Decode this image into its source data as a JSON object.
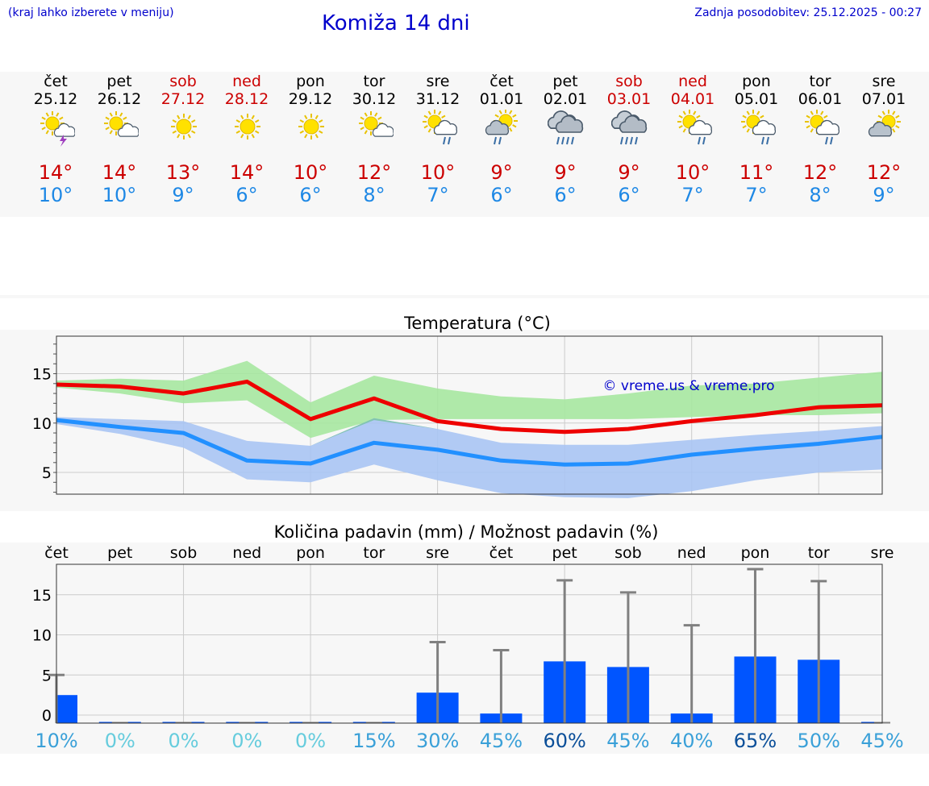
{
  "header": {
    "hint": "(kraj lahko izberete v meniju)",
    "title": "Komiža 14 dni",
    "updated": "Zadnja posodobitev: 25.12.2025 - 00:27"
  },
  "days": [
    {
      "name": "čet",
      "date": "25.12",
      "max": "14°",
      "min": "10°",
      "icon": "sun-cloud-lightning-icon",
      "weekend": false
    },
    {
      "name": "pet",
      "date": "26.12",
      "max": "14°",
      "min": "10°",
      "icon": "sun-cloud-icon",
      "weekend": false
    },
    {
      "name": "sob",
      "date": "27.12",
      "max": "13°",
      "min": "9°",
      "icon": "sun-icon",
      "weekend": true
    },
    {
      "name": "ned",
      "date": "28.12",
      "max": "14°",
      "min": "6°",
      "icon": "sun-icon",
      "weekend": true
    },
    {
      "name": "pon",
      "date": "29.12",
      "max": "10°",
      "min": "6°",
      "icon": "sun-icon",
      "weekend": false
    },
    {
      "name": "tor",
      "date": "30.12",
      "max": "12°",
      "min": "8°",
      "icon": "sun-cloud-icon",
      "weekend": false
    },
    {
      "name": "sre",
      "date": "31.12",
      "max": "10°",
      "min": "7°",
      "icon": "sun-cloud-rain-icon",
      "weekend": false
    },
    {
      "name": "čet",
      "date": "01.01",
      "max": "9°",
      "min": "6°",
      "icon": "sun-dark-cloud-rain-icon",
      "weekend": false
    },
    {
      "name": "pet",
      "date": "02.01",
      "max": "9°",
      "min": "6°",
      "icon": "heavy-rain-cloud-icon",
      "weekend": false
    },
    {
      "name": "sob",
      "date": "03.01",
      "max": "9°",
      "min": "6°",
      "icon": "heavy-rain-cloud-icon",
      "weekend": true
    },
    {
      "name": "ned",
      "date": "04.01",
      "max": "10°",
      "min": "7°",
      "icon": "sun-cloud-rain-icon",
      "weekend": true
    },
    {
      "name": "pon",
      "date": "05.01",
      "max": "11°",
      "min": "7°",
      "icon": "sun-cloud-rain-icon",
      "weekend": false
    },
    {
      "name": "tor",
      "date": "06.01",
      "max": "12°",
      "min": "8°",
      "icon": "sun-cloud-rain-icon",
      "weekend": false
    },
    {
      "name": "sre",
      "date": "07.01",
      "max": "12°",
      "min": "9°",
      "icon": "sun-dark-cloud-icon",
      "weekend": false
    }
  ],
  "chart_data": [
    {
      "type": "line",
      "title": "Temperatura (°C)",
      "watermark": "© vreme.us & vreme.pro",
      "x": [
        0,
        1,
        2,
        3,
        4,
        5,
        6,
        7,
        8,
        9,
        10,
        11,
        12,
        13
      ],
      "ylim": [
        2.8,
        18.8
      ],
      "yticks": [
        5,
        10,
        15
      ],
      "series": [
        {
          "name": "max",
          "color": "#ee0000",
          "values": [
            13.9,
            13.7,
            13.0,
            14.2,
            10.4,
            12.5,
            10.2,
            9.4,
            9.1,
            9.4,
            10.2,
            10.8,
            11.6,
            11.8
          ]
        },
        {
          "name": "min",
          "color": "#2290ff",
          "values": [
            10.3,
            9.6,
            9.0,
            6.2,
            5.9,
            8.0,
            7.3,
            6.2,
            5.8,
            5.9,
            6.8,
            7.4,
            7.9,
            8.6
          ]
        }
      ],
      "bands": [
        {
          "name": "max-range",
          "color": "#a6e7a0",
          "upper": [
            14.3,
            14.5,
            14.3,
            16.3,
            12.1,
            14.8,
            13.5,
            12.7,
            12.4,
            13.0,
            13.8,
            14.0,
            14.6,
            15.2
          ],
          "lower": [
            13.6,
            13.0,
            12.0,
            12.3,
            8.5,
            10.3,
            10.4,
            10.4,
            10.4,
            10.4,
            10.6,
            10.8,
            10.8,
            11.0
          ]
        },
        {
          "name": "min-range",
          "color": "#a9c4f3",
          "upper": [
            10.6,
            10.4,
            10.2,
            8.2,
            7.7,
            10.5,
            9.4,
            8.0,
            7.8,
            7.8,
            8.3,
            8.8,
            9.2,
            9.7
          ],
          "lower": [
            9.9,
            8.9,
            7.5,
            4.3,
            4.0,
            5.8,
            4.2,
            2.9,
            2.5,
            2.4,
            3.1,
            4.2,
            5.0,
            5.3
          ]
        }
      ]
    },
    {
      "type": "bar",
      "title": "Količina padavin (mm) / Možnost padavin (%)",
      "categories": [
        "čet",
        "pet",
        "sob",
        "ned",
        "pon",
        "tor",
        "sre",
        "čet",
        "pet",
        "sob",
        "ned",
        "pon",
        "tor",
        "sre"
      ],
      "ylim": [
        -1,
        18.8
      ],
      "yticks": [
        0,
        5,
        10,
        15
      ],
      "values": [
        2.5,
        0,
        0,
        0,
        0,
        0,
        2.8,
        0.2,
        6.7,
        6.0,
        0.2,
        7.3,
        6.9,
        0
      ],
      "max_values": [
        5.0,
        0,
        0,
        0,
        0,
        0,
        9.1,
        8.1,
        16.8,
        15.3,
        11.2,
        18.2,
        16.7,
        0
      ],
      "chance": [
        "10%",
        "0%",
        "0%",
        "0%",
        "0%",
        "15%",
        "30%",
        "45%",
        "60%",
        "45%",
        "40%",
        "65%",
        "50%",
        "45%"
      ],
      "chance_colors": [
        "#3aa0d8",
        "#66ccdd",
        "#66ccdd",
        "#66ccdd",
        "#66ccdd",
        "#3aa0d8",
        "#3aa0d8",
        "#3aa0d8",
        "#0b4f99",
        "#3aa0d8",
        "#3aa0d8",
        "#0b4f99",
        "#3aa0d8",
        "#3aa0d8"
      ],
      "bar_color": "#0055ff",
      "whisker_color": "#808080"
    }
  ]
}
